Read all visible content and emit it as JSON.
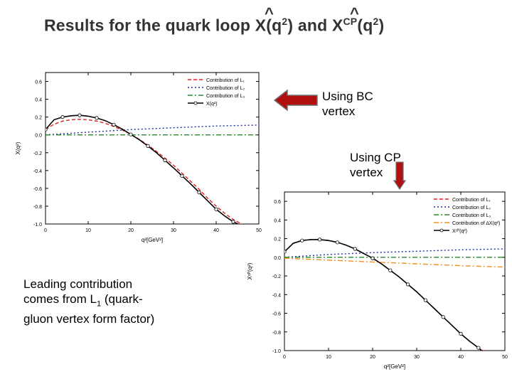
{
  "slide": {
    "title_pre": "Results for the quark loop X(q",
    "title_mid": ") and X",
    "title_post": "(q",
    "title_end": ")",
    "title_sup2": "2",
    "title_cp": "CP",
    "hat_symbol": "^",
    "bc_label_line1": "Using BC",
    "bc_label_line2": "vertex",
    "cp_label_line1": "Using CP",
    "cp_label_line2": "vertex",
    "note_line1": "Leading contribution",
    "note_line2_pre": "comes from  L",
    "note_line2_sub": "1",
    "note_line2_post": "  (quark-",
    "note_line3": "gluon vertex form factor)",
    "colors": {
      "arrow": "#b01010",
      "arrow_edge": "#707070"
    }
  },
  "chart_data": [
    {
      "type": "line",
      "name": "BC vertex",
      "xlabel": "q²[GeV²]",
      "ylabel": "X(q²)",
      "xlim": [
        0,
        50
      ],
      "ylim": [
        -1.0,
        0.7
      ],
      "xticks": [
        0,
        10,
        20,
        30,
        40,
        50
      ],
      "yticks": [
        0.6,
        0.4,
        0.2,
        0.0,
        -0.2,
        -0.4,
        -0.6,
        -0.8,
        -1.0
      ],
      "legend_position": "top-right",
      "series": [
        {
          "name": "Contribution of L₁",
          "color": "#e02020",
          "dash": "5,3",
          "x": [
            0,
            2,
            4,
            6,
            8,
            10,
            12,
            14,
            16,
            18,
            20,
            22,
            24,
            26,
            28,
            30,
            32,
            34,
            36,
            38,
            40,
            42,
            44,
            46,
            47.5
          ],
          "y": [
            0.06,
            0.12,
            0.155,
            0.17,
            0.175,
            0.17,
            0.155,
            0.13,
            0.095,
            0.055,
            0.005,
            -0.05,
            -0.115,
            -0.185,
            -0.26,
            -0.34,
            -0.43,
            -0.52,
            -0.61,
            -0.71,
            -0.8,
            -0.88,
            -0.95,
            -1.0,
            -1.04
          ]
        },
        {
          "name": "Contribution of L₂",
          "color": "#1c2fa0",
          "dash": "2,3",
          "x": [
            0,
            10,
            20,
            30,
            40,
            50
          ],
          "y": [
            0.0,
            0.03,
            0.06,
            0.08,
            0.1,
            0.11
          ]
        },
        {
          "name": "Contribution of L₃",
          "color": "#2a8a2a",
          "dash": "7,3,2,3",
          "x": [
            0,
            50
          ],
          "y": [
            0.0,
            0.0
          ]
        },
        {
          "name": "X(q²)",
          "color": "#000000",
          "dash": "",
          "markers": true,
          "x": [
            0,
            2,
            4,
            6,
            8,
            10,
            12,
            14,
            16,
            18,
            20,
            22,
            24,
            26,
            28,
            30,
            32,
            34,
            36,
            38,
            40,
            42,
            44,
            46,
            47.2
          ],
          "y": [
            0.06,
            0.17,
            0.2,
            0.215,
            0.22,
            0.21,
            0.19,
            0.16,
            0.115,
            0.065,
            0.005,
            -0.055,
            -0.125,
            -0.2,
            -0.285,
            -0.37,
            -0.46,
            -0.55,
            -0.645,
            -0.74,
            -0.835,
            -0.91,
            -0.975,
            -1.02,
            -1.05
          ]
        }
      ]
    },
    {
      "type": "line",
      "name": "CP vertex",
      "xlabel": "q²[GeV²]",
      "ylabel": "Xᶜᴾ(q²)",
      "xlim": [
        0,
        50
      ],
      "ylim": [
        -1.0,
        0.7
      ],
      "xticks": [
        0,
        10,
        20,
        30,
        40,
        50
      ],
      "yticks": [
        0.6,
        0.4,
        0.2,
        0.0,
        -0.2,
        -0.4,
        -0.6,
        -0.8,
        -1.0
      ],
      "legend_position": "top-right",
      "series": [
        {
          "name": "Contribution of L₁",
          "color": "#e02020",
          "dash": "5,3",
          "x": [
            0,
            2,
            4,
            6,
            8,
            10,
            12,
            14,
            16,
            18,
            20,
            22,
            24,
            26,
            28,
            30,
            32,
            34,
            36,
            38,
            40,
            42,
            44,
            46
          ],
          "y": [
            0.06,
            0.15,
            0.18,
            0.19,
            0.19,
            0.18,
            0.16,
            0.13,
            0.09,
            0.04,
            -0.01,
            -0.07,
            -0.14,
            -0.21,
            -0.29,
            -0.37,
            -0.46,
            -0.55,
            -0.64,
            -0.73,
            -0.82,
            -0.9,
            -0.97,
            -1.03
          ]
        },
        {
          "name": "Contribution of L₂",
          "color": "#1c2fa0",
          "dash": "2,3",
          "x": [
            0,
            10,
            20,
            30,
            40,
            50
          ],
          "y": [
            0.0,
            0.03,
            0.05,
            0.065,
            0.08,
            0.09
          ]
        },
        {
          "name": "Contribution of L₃",
          "color": "#2a8a2a",
          "dash": "7,3,2,3",
          "x": [
            0,
            50
          ],
          "y": [
            0.0,
            0.0
          ]
        },
        {
          "name": "Contribution of ∆X(q²)",
          "color": "#f09020",
          "dash": "7,3,2,3",
          "x": [
            0,
            10,
            20,
            30,
            40,
            50
          ],
          "y": [
            -0.01,
            -0.03,
            -0.05,
            -0.07,
            -0.09,
            -0.105
          ]
        },
        {
          "name": "Xᶜᴾ(q²)",
          "color": "#000000",
          "dash": "",
          "markers": true,
          "x": [
            0,
            2,
            4,
            6,
            8,
            10,
            12,
            14,
            16,
            18,
            20,
            22,
            24,
            26,
            28,
            30,
            32,
            34,
            36,
            38,
            40,
            42,
            44,
            45.5
          ],
          "y": [
            0.06,
            0.15,
            0.18,
            0.19,
            0.19,
            0.18,
            0.16,
            0.13,
            0.09,
            0.04,
            -0.01,
            -0.07,
            -0.14,
            -0.21,
            -0.29,
            -0.37,
            -0.46,
            -0.55,
            -0.64,
            -0.73,
            -0.82,
            -0.9,
            -0.97,
            -1.03
          ]
        }
      ]
    }
  ]
}
